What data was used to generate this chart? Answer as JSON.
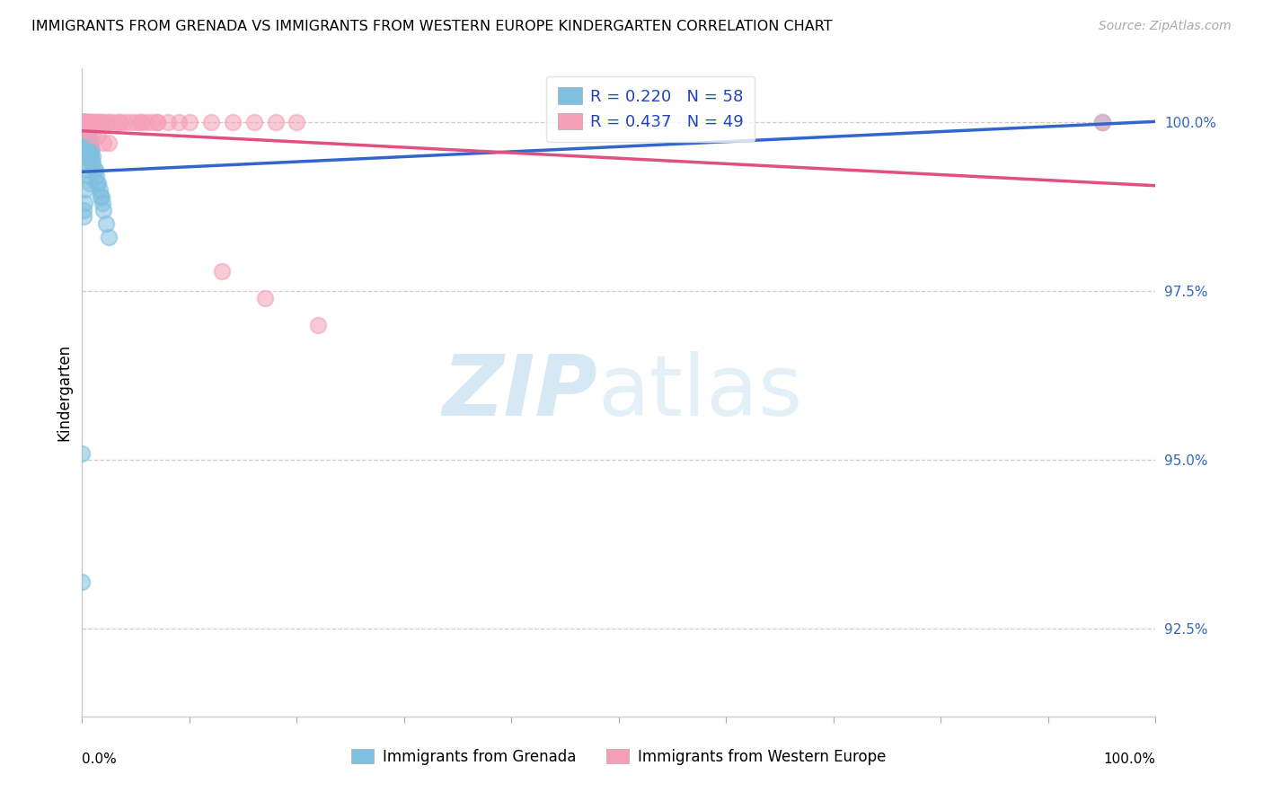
{
  "title": "IMMIGRANTS FROM GRENADA VS IMMIGRANTS FROM WESTERN EUROPE KINDERGARTEN CORRELATION CHART",
  "source": "Source: ZipAtlas.com",
  "ylabel": "Kindergarten",
  "y_tick_labels": [
    "92.5%",
    "95.0%",
    "97.5%",
    "100.0%"
  ],
  "y_tick_values": [
    0.925,
    0.95,
    0.975,
    1.0
  ],
  "legend_label1": "Immigrants from Grenada",
  "legend_label2": "Immigrants from Western Europe",
  "R1": 0.22,
  "N1": 58,
  "R2": 0.437,
  "N2": 49,
  "color_blue": "#7fbfdf",
  "color_pink": "#f4a0b8",
  "color_blue_line": "#3366cc",
  "color_pink_line": "#e05080",
  "watermark_zip": "ZIP",
  "watermark_atlas": "atlas",
  "xlim": [
    0.0,
    1.0
  ],
  "ylim": [
    0.912,
    1.008
  ],
  "blue_x": [
    0.0,
    0.0,
    0.001,
    0.001,
    0.001,
    0.001,
    0.002,
    0.002,
    0.002,
    0.002,
    0.003,
    0.003,
    0.003,
    0.003,
    0.003,
    0.004,
    0.004,
    0.004,
    0.005,
    0.005,
    0.005,
    0.006,
    0.006,
    0.006,
    0.007,
    0.007,
    0.007,
    0.008,
    0.008,
    0.008,
    0.009,
    0.009,
    0.01,
    0.01,
    0.011,
    0.012,
    0.013,
    0.014,
    0.015,
    0.016,
    0.017,
    0.018,
    0.019,
    0.02,
    0.022,
    0.025,
    0.004,
    0.005,
    0.006,
    0.007,
    0.003,
    0.004,
    0.002,
    0.001,
    0.001,
    0.002,
    0.003,
    0.95
  ],
  "blue_y": [
    0.932,
    0.951,
    1.0,
    1.0,
    1.0,
    0.999,
    1.0,
    1.0,
    0.999,
    0.998,
    1.0,
    1.0,
    0.999,
    0.998,
    0.997,
    0.999,
    0.998,
    0.997,
    0.998,
    0.997,
    0.996,
    0.998,
    0.997,
    0.996,
    0.997,
    0.996,
    0.995,
    0.997,
    0.996,
    0.995,
    0.996,
    0.994,
    0.995,
    0.994,
    0.993,
    0.993,
    0.992,
    0.991,
    0.991,
    0.99,
    0.989,
    0.989,
    0.988,
    0.987,
    0.985,
    0.983,
    0.994,
    0.993,
    0.992,
    0.991,
    0.996,
    0.995,
    0.997,
    0.987,
    0.986,
    0.988,
    0.99,
    1.0
  ],
  "pink_x": [
    0.0,
    0.003,
    0.005,
    0.007,
    0.008,
    0.01,
    0.012,
    0.015,
    0.018,
    0.02,
    0.025,
    0.03,
    0.035,
    0.04,
    0.05,
    0.055,
    0.06,
    0.065,
    0.07,
    0.08,
    0.09,
    0.1,
    0.12,
    0.14,
    0.16,
    0.18,
    0.2,
    0.003,
    0.005,
    0.007,
    0.01,
    0.015,
    0.02,
    0.025,
    0.13,
    0.17,
    0.22,
    0.95,
    0.002,
    0.004,
    0.006,
    0.008,
    0.012,
    0.016,
    0.025,
    0.035,
    0.045,
    0.055,
    0.07
  ],
  "pink_y": [
    1.0,
    1.0,
    1.0,
    1.0,
    1.0,
    1.0,
    1.0,
    1.0,
    1.0,
    1.0,
    1.0,
    1.0,
    1.0,
    1.0,
    1.0,
    1.0,
    1.0,
    1.0,
    1.0,
    1.0,
    1.0,
    1.0,
    1.0,
    1.0,
    1.0,
    1.0,
    1.0,
    0.999,
    0.999,
    0.999,
    0.998,
    0.998,
    0.997,
    0.997,
    0.978,
    0.974,
    0.97,
    1.0,
    1.0,
    1.0,
    1.0,
    1.0,
    1.0,
    1.0,
    1.0,
    1.0,
    1.0,
    1.0,
    1.0
  ]
}
